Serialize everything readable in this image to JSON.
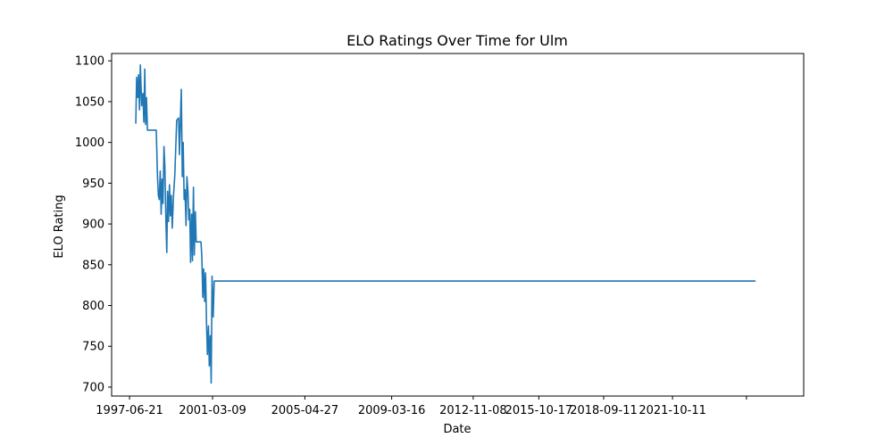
{
  "chart_data": {
    "type": "line",
    "title": "ELO Ratings Over Time for Ulm",
    "xlabel": "Date",
    "ylabel": "ELO Rating",
    "xlim": [
      "1996-09-01",
      "2027-08-26"
    ],
    "ylim": [
      689,
      1109
    ],
    "x_ticks": [
      "1997-06-21",
      "2001-03-09",
      "2005-04-27",
      "2009-03-16",
      "2012-11-08",
      "2015-10-17",
      "2018-09-11",
      "2021-10-11",
      "2025-02-01"
    ],
    "x_tick_labels": [
      "1997-06-21",
      "2001-03-09",
      "2005-04-27",
      "2009-03-16",
      "2012-11-08",
      "2015-10-17",
      "2018-09-11",
      "2021-10-11",
      ""
    ],
    "y_ticks": [
      700,
      750,
      800,
      850,
      900,
      950,
      1000,
      1050,
      1100
    ],
    "y_tick_labels": [
      "700",
      "750",
      "800",
      "850",
      "900",
      "950",
      "1000",
      "1050",
      "1100"
    ],
    "grid": false,
    "series": [
      {
        "color": "#1f77b4",
        "points": [
          [
            "1997-10-01",
            1023
          ],
          [
            "1997-10-15",
            1080
          ],
          [
            "1997-11-01",
            1055
          ],
          [
            "1997-11-15",
            1083
          ],
          [
            "1997-12-01",
            1040
          ],
          [
            "1997-12-15",
            1095
          ],
          [
            "1998-01-05",
            1045
          ],
          [
            "1998-01-25",
            1060
          ],
          [
            "1998-02-10",
            1025
          ],
          [
            "1998-02-25",
            1090
          ],
          [
            "1998-03-10",
            1022
          ],
          [
            "1998-03-25",
            1055
          ],
          [
            "1998-04-10",
            1015
          ],
          [
            "1998-09-01",
            1015
          ],
          [
            "1998-09-20",
            960
          ],
          [
            "1998-10-05",
            935
          ],
          [
            "1998-10-20",
            930
          ],
          [
            "1998-11-05",
            965
          ],
          [
            "1998-11-20",
            912
          ],
          [
            "1998-12-05",
            955
          ],
          [
            "1998-12-20",
            925
          ],
          [
            "1999-01-05",
            995
          ],
          [
            "1999-01-20",
            970
          ],
          [
            "1999-02-05",
            905
          ],
          [
            "1999-02-20",
            865
          ],
          [
            "1999-03-05",
            940
          ],
          [
            "1999-03-20",
            903
          ],
          [
            "1999-04-05",
            948
          ],
          [
            "1999-04-20",
            910
          ],
          [
            "1999-05-05",
            935
          ],
          [
            "1999-05-20",
            895
          ],
          [
            "1999-06-10",
            935
          ],
          [
            "1999-07-01",
            960
          ],
          [
            "1999-08-01",
            1027
          ],
          [
            "1999-09-01",
            1030
          ],
          [
            "1999-09-15",
            985
          ],
          [
            "1999-10-01",
            1028
          ],
          [
            "1999-10-15",
            1065
          ],
          [
            "1999-11-01",
            958
          ],
          [
            "1999-11-15",
            1000
          ],
          [
            "1999-12-01",
            930
          ],
          [
            "1999-12-15",
            942
          ],
          [
            "2000-01-01",
            898
          ],
          [
            "2000-01-15",
            958
          ],
          [
            "2000-02-01",
            940
          ],
          [
            "2000-02-15",
            905
          ],
          [
            "2000-03-01",
            918
          ],
          [
            "2000-03-15",
            853
          ],
          [
            "2000-04-01",
            912
          ],
          [
            "2000-04-15",
            855
          ],
          [
            "2000-05-01",
            945
          ],
          [
            "2000-05-15",
            862
          ],
          [
            "2000-06-01",
            915
          ],
          [
            "2000-06-15",
            878
          ],
          [
            "2000-09-01",
            878
          ],
          [
            "2000-09-15",
            860
          ],
          [
            "2000-10-01",
            810
          ],
          [
            "2000-10-15",
            845
          ],
          [
            "2000-11-01",
            805
          ],
          [
            "2000-11-15",
            840
          ],
          [
            "2000-12-01",
            778
          ],
          [
            "2000-12-15",
            740
          ],
          [
            "2001-01-01",
            775
          ],
          [
            "2001-01-15",
            726
          ],
          [
            "2001-02-01",
            763
          ],
          [
            "2001-02-15",
            705
          ],
          [
            "2001-03-01",
            836
          ],
          [
            "2001-03-20",
            786
          ],
          [
            "2001-04-05",
            830
          ],
          [
            "2025-07-01",
            830
          ]
        ]
      }
    ]
  }
}
